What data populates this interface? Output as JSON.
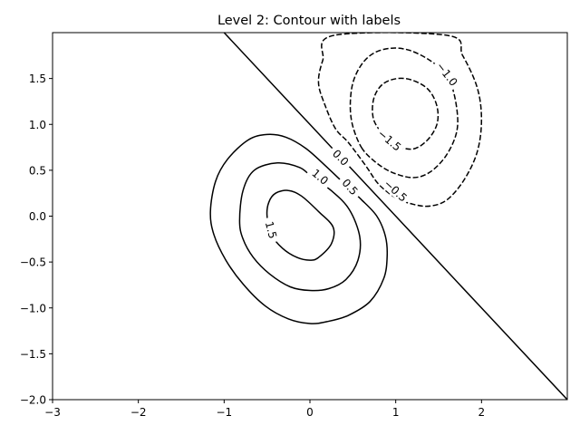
{
  "chart_data": {
    "type": "contour",
    "title": "Level 2: Contour with labels",
    "xlabel": "",
    "ylabel": "",
    "xlim": [
      -3,
      3
    ],
    "ylim": [
      -2,
      2
    ],
    "xticks": [
      -3,
      -2,
      -1,
      0,
      1,
      2
    ],
    "xtick_labels": [
      "−3",
      "−2",
      "−1",
      "0",
      "1",
      "2"
    ],
    "yticks": [
      -2.0,
      -1.5,
      -1.0,
      -0.5,
      0.0,
      0.5,
      1.0,
      1.5
    ],
    "ytick_labels": [
      "−2.0",
      "−1.5",
      "−1.0",
      "−0.5",
      "0.0",
      "0.5",
      "1.0",
      "1.5"
    ],
    "grid": false,
    "line_color": "#000000",
    "negative_linestyle": "dashed",
    "levels": [
      -1.5,
      -1.0,
      -0.5,
      0.0,
      0.5,
      1.0,
      1.5
    ],
    "contours": [
      {
        "level": 1.5,
        "label": "1.5",
        "points": [
          [
            -0.5,
            0.0
          ],
          [
            -0.48,
            0.15
          ],
          [
            -0.4,
            0.25
          ],
          [
            -0.25,
            0.28
          ],
          [
            -0.1,
            0.22
          ],
          [
            0.1,
            0.05
          ],
          [
            0.27,
            -0.12
          ],
          [
            0.25,
            -0.3
          ],
          [
            0.1,
            -0.45
          ],
          [
            0.0,
            -0.48
          ],
          [
            -0.15,
            -0.45
          ],
          [
            -0.32,
            -0.35
          ],
          [
            -0.45,
            -0.2
          ],
          [
            -0.5,
            0.0
          ]
        ],
        "label_at": [
          -0.45,
          -0.15
        ],
        "label_angle": 75
      },
      {
        "level": 1.0,
        "label": "1.0",
        "points": [
          [
            -0.82,
            -0.05
          ],
          [
            -0.78,
            0.28
          ],
          [
            -0.65,
            0.5
          ],
          [
            -0.38,
            0.58
          ],
          [
            -0.12,
            0.53
          ],
          [
            0.02,
            0.43
          ],
          [
            0.26,
            0.27
          ],
          [
            0.46,
            0.07
          ],
          [
            0.58,
            -0.22
          ],
          [
            0.56,
            -0.48
          ],
          [
            0.42,
            -0.69
          ],
          [
            0.22,
            -0.79
          ],
          [
            0.0,
            -0.81
          ],
          [
            -0.23,
            -0.77
          ],
          [
            -0.47,
            -0.63
          ],
          [
            -0.66,
            -0.45
          ],
          [
            -0.78,
            -0.25
          ],
          [
            -0.82,
            -0.05
          ]
        ],
        "label_at": [
          0.12,
          0.43
        ],
        "label_angle": 40
      },
      {
        "level": 0.5,
        "label": "0.5",
        "points": [
          [
            -1.16,
            0.05
          ],
          [
            -1.1,
            0.38
          ],
          [
            -0.96,
            0.62
          ],
          [
            -0.72,
            0.83
          ],
          [
            -0.5,
            0.89
          ],
          [
            -0.28,
            0.86
          ],
          [
            -0.05,
            0.74
          ],
          [
            0.18,
            0.55
          ],
          [
            0.45,
            0.31
          ],
          [
            0.6,
            0.18
          ],
          [
            0.78,
            0.0
          ],
          [
            0.88,
            -0.22
          ],
          [
            0.9,
            -0.44
          ],
          [
            0.86,
            -0.68
          ],
          [
            0.7,
            -0.93
          ],
          [
            0.45,
            -1.08
          ],
          [
            0.2,
            -1.15
          ],
          [
            0.0,
            -1.17
          ],
          [
            -0.25,
            -1.12
          ],
          [
            -0.52,
            -0.98
          ],
          [
            -0.78,
            -0.74
          ],
          [
            -0.98,
            -0.48
          ],
          [
            -1.12,
            -0.2
          ],
          [
            -1.16,
            0.05
          ]
        ],
        "label_at": [
          0.47,
          0.32
        ],
        "label_angle": 48
      },
      {
        "level": 0.0,
        "label": "0.0",
        "points": [
          [
            -1.0,
            2.0
          ],
          [
            0.0,
            1.0
          ],
          [
            1.0,
            0.0
          ],
          [
            2.0,
            -1.0
          ],
          [
            3.0,
            -2.0
          ]
        ],
        "label_at": [
          0.36,
          0.64
        ],
        "label_angle": 45
      },
      {
        "level": -0.5,
        "label": "−0.5",
        "points": [
          [
            1.0,
            0.2
          ],
          [
            1.2,
            0.13
          ],
          [
            1.4,
            0.11
          ],
          [
            1.6,
            0.18
          ],
          [
            1.8,
            0.4
          ],
          [
            1.95,
            0.7
          ],
          [
            2.0,
            1.05
          ],
          [
            1.95,
            1.4
          ],
          [
            1.78,
            1.75
          ],
          [
            1.6,
            1.97
          ],
          [
            0.28,
            1.97
          ],
          [
            0.15,
            1.7
          ],
          [
            0.1,
            1.45
          ],
          [
            0.18,
            1.2
          ],
          [
            0.3,
            0.95
          ],
          [
            0.45,
            0.8
          ],
          [
            0.65,
            0.55
          ],
          [
            0.8,
            0.35
          ],
          [
            1.0,
            0.2
          ]
        ],
        "label_at": [
          1.0,
          0.28
        ],
        "label_angle": 42
      },
      {
        "level": -1.0,
        "label": "−1.0",
        "points": [
          [
            0.6,
            0.75
          ],
          [
            0.75,
            0.6
          ],
          [
            0.95,
            0.48
          ],
          [
            1.2,
            0.42
          ],
          [
            1.4,
            0.48
          ],
          [
            1.58,
            0.65
          ],
          [
            1.7,
            0.88
          ],
          [
            1.72,
            1.1
          ],
          [
            1.66,
            1.4
          ],
          [
            1.55,
            1.58
          ],
          [
            1.36,
            1.72
          ],
          [
            1.15,
            1.81
          ],
          [
            0.95,
            1.83
          ],
          [
            0.75,
            1.78
          ],
          [
            0.6,
            1.65
          ],
          [
            0.5,
            1.45
          ],
          [
            0.47,
            1.2
          ],
          [
            0.5,
            0.98
          ],
          [
            0.6,
            0.75
          ]
        ],
        "label_at": [
          1.6,
          1.55
        ],
        "label_angle": 52
      },
      {
        "level": -1.5,
        "label": "−1.5",
        "points": [
          [
            0.95,
            0.8
          ],
          [
            1.18,
            0.73
          ],
          [
            1.36,
            0.82
          ],
          [
            1.48,
            1.0
          ],
          [
            1.48,
            1.2
          ],
          [
            1.38,
            1.38
          ],
          [
            1.2,
            1.48
          ],
          [
            1.02,
            1.5
          ],
          [
            0.85,
            1.44
          ],
          [
            0.75,
            1.3
          ],
          [
            0.73,
            1.12
          ],
          [
            0.78,
            0.98
          ],
          [
            0.95,
            0.8
          ]
        ],
        "label_at": [
          0.93,
          0.83
        ],
        "label_angle": 40
      }
    ]
  }
}
